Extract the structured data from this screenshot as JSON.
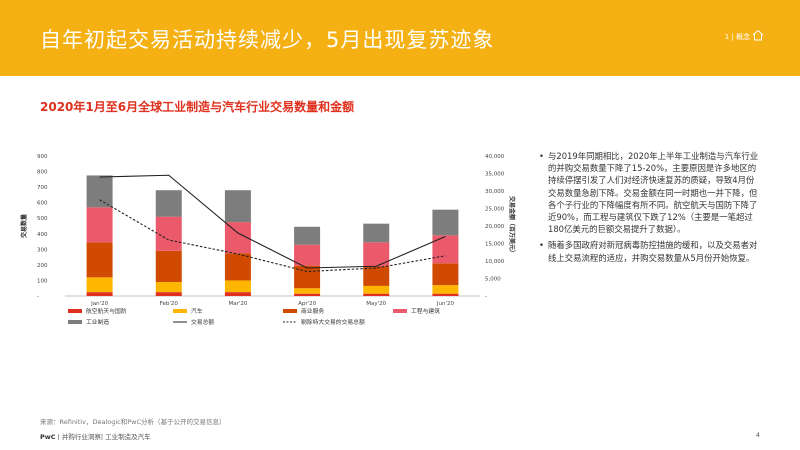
{
  "header": {
    "title": "自年初起交易活动持续减少，5月出现复苏迹象",
    "nav": "1 | 概念"
  },
  "subtitle": "2020年1月至6月全球工业制造与汽车行业交易数量和金额",
  "chart_data": {
    "type": "bar",
    "stacked": true,
    "categories": [
      "Jan'20",
      "Feb'20",
      "Mar'20",
      "Apr'20",
      "May'20",
      "Jun'20"
    ],
    "series": [
      {
        "name": "航空航天与国防",
        "color": "#e0301e",
        "values": [
          25,
          25,
          25,
          15,
          15,
          15
        ]
      },
      {
        "name": "汽车",
        "color": "#ffb600",
        "values": [
          95,
          65,
          75,
          35,
          50,
          55
        ]
      },
      {
        "name": "商业服务",
        "color": "#d04a02",
        "values": [
          225,
          200,
          175,
          145,
          125,
          140
        ]
      },
      {
        "name": "工程与建筑",
        "color": "#eb5a6a",
        "values": [
          225,
          220,
          200,
          135,
          155,
          180
        ]
      },
      {
        "name": "工业制造",
        "color": "#7d7d7d",
        "values": [
          205,
          170,
          205,
          115,
          120,
          165
        ]
      }
    ],
    "line_series": [
      {
        "name": "交易总额",
        "style": "solid",
        "color": "#222222",
        "values": [
          34000,
          34500,
          18000,
          8000,
          8500,
          17000
        ]
      },
      {
        "name": "剔除特大交易的交易总额",
        "style": "dashed",
        "color": "#222222",
        "values": [
          27500,
          16000,
          12000,
          7000,
          8000,
          11500
        ]
      }
    ],
    "ylabel_left": "交易数量",
    "ylabel_right": "交易金额（百万美元）",
    "ylim_left": [
      0,
      900
    ],
    "ylim_right": [
      0,
      40000
    ],
    "yticks_left": [
      "900",
      "800",
      "700",
      "600",
      "500",
      "400",
      "300",
      "200",
      "100",
      "-"
    ],
    "yticks_right": [
      "40,000",
      "35,000",
      "30,000",
      "25,000",
      "20,000",
      "15,000",
      "10,000",
      "5,000",
      "-"
    ],
    "legend_position": "bottom"
  },
  "bullets": [
    "与2019年同期相比，2020年上半年工业制造与汽车行业的并购交易数量下降了15-20%，主要原因是许多地区的持续停摆引发了人们对经济快速复苏的质疑，导致4月份交易数量急剧下降。交易金额在同一时期也一并下降，但各个子行业的下降幅度有所不同。航空航天与国防下降了近90%，而工程与建筑仅下跌了12%（主要是一笔超过180亿美元的巨额交易提升了数据）。",
    "随着多国政府对新冠病毒防控措施的缓和，以及交易者对线上交易流程的适应，并购交易数量从5月份开始恢复。"
  ],
  "source": "来源：Refinitiv，Dealogic和PwC分析（基于公开的交易信息）",
  "footer": {
    "brand": "PwC",
    "text": " | 并购行业洞察| 工业制造及汽车"
  },
  "page_number": "4"
}
